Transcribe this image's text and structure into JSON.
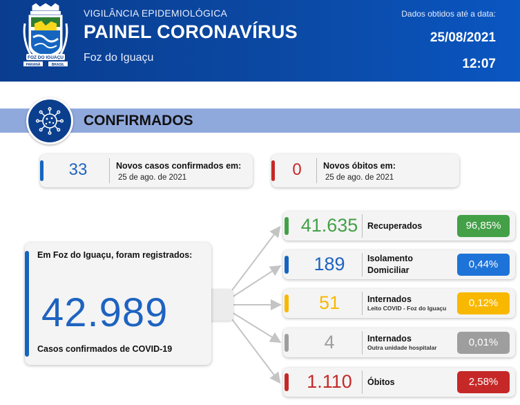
{
  "header": {
    "subtitle": "VIGILÂNCIA EPIDEMIOLÓGICA",
    "title": "PAINEL CORONAVÍRUS",
    "city": "Foz do Iguaçu",
    "data_label": "Dados obtidos até a data:",
    "date": "25/08/2021",
    "time": "12:07",
    "crest": {
      "icon": "city-crest-icon",
      "banner_text": "FOZ DO IGUAÇU",
      "left_tag": "PARANÁ",
      "right_tag": "BRASIL"
    }
  },
  "section": {
    "title": "CONFIRMADOS",
    "icon": "virus-icon"
  },
  "new_cases": {
    "value": "33",
    "title": "Novos casos confirmados em:",
    "date": "25 de ago. de 2021",
    "color": "#1565c0"
  },
  "new_deaths": {
    "value": "0",
    "title": "Novos óbitos em:",
    "date": "25 de ago. de 2021",
    "color": "#c62828"
  },
  "total": {
    "title": "Em Foz do Iguaçu, foram registrados:",
    "value": "42.989",
    "subtitle": "Casos confirmados de COVID-19"
  },
  "breakdown": [
    {
      "value": "41.635",
      "label": "Recuperados",
      "sublabel": "",
      "percent": "96,85%",
      "color": "#43a047"
    },
    {
      "value": "189",
      "label": "Isolamento Domiciliar",
      "sublabel": "",
      "percent": "0,44%",
      "color": "#1e73d8"
    },
    {
      "value": "51",
      "label": "Internados",
      "sublabel": "Leito COVID - Foz do Iguaçu",
      "percent": "0,12%",
      "color": "#f9b800"
    },
    {
      "value": "4",
      "label": "Internados",
      "sublabel": "Outra unidade hospitalar",
      "percent": "0,01%",
      "color": "#9e9e9e"
    },
    {
      "value": "1.110",
      "label": "Óbitos",
      "sublabel": "",
      "percent": "2,58%",
      "color": "#c62828"
    }
  ]
}
